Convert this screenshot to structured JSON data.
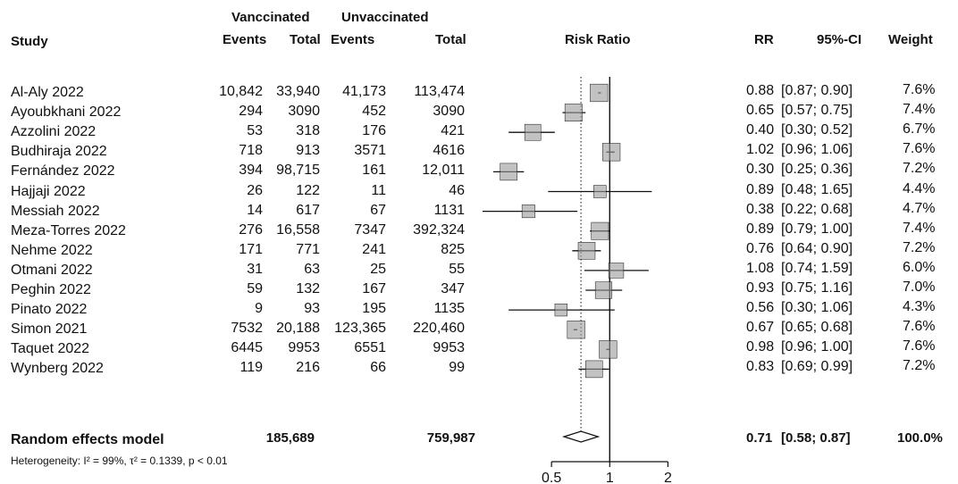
{
  "chart_data": {
    "type": "forest",
    "header": {
      "study": "Study",
      "vaccinated": "Vanccinated",
      "unvaccinated": "Unvaccinated",
      "events": "Events",
      "total": "Total",
      "risk_ratio": "Risk Ratio",
      "rr": "RR",
      "ci": "95%-CI",
      "weight": "Weight"
    },
    "studies": [
      {
        "study": "Al-Aly 2022",
        "vac_events": "10,842",
        "vac_total": "33,940",
        "unvac_events": "41,173",
        "unvac_total": "113,474",
        "rr": 0.88,
        "lo": 0.87,
        "hi": 0.9,
        "rr_text": "0.88",
        "ci_text": "[0.87; 0.90]",
        "weight": "7.6%"
      },
      {
        "study": "Ayoubkhani 2022",
        "vac_events": "294",
        "vac_total": "3090",
        "unvac_events": "452",
        "unvac_total": "3090",
        "rr": 0.65,
        "lo": 0.57,
        "hi": 0.75,
        "rr_text": "0.65",
        "ci_text": "[0.57; 0.75]",
        "weight": "7.4%"
      },
      {
        "study": "Azzolini 2022",
        "vac_events": "53",
        "vac_total": "318",
        "unvac_events": "176",
        "unvac_total": "421",
        "rr": 0.4,
        "lo": 0.3,
        "hi": 0.52,
        "rr_text": "0.40",
        "ci_text": "[0.30; 0.52]",
        "weight": "6.7%"
      },
      {
        "study": "Budhiraja 2022",
        "vac_events": "718",
        "vac_total": "913",
        "unvac_events": "3571",
        "unvac_total": "4616",
        "rr": 1.02,
        "lo": 0.96,
        "hi": 1.06,
        "rr_text": "1.02",
        "ci_text": "[0.96; 1.06]",
        "weight": "7.6%"
      },
      {
        "study": "Fernández 2022",
        "vac_events": "394",
        "vac_total": "98,715",
        "unvac_events": "161",
        "unvac_total": "12,011",
        "rr": 0.3,
        "lo": 0.25,
        "hi": 0.36,
        "rr_text": "0.30",
        "ci_text": "[0.25; 0.36]",
        "weight": "7.2%"
      },
      {
        "study": "Hajjaji 2022",
        "vac_events": "26",
        "vac_total": "122",
        "unvac_events": "11",
        "unvac_total": "46",
        "rr": 0.89,
        "lo": 0.48,
        "hi": 1.65,
        "rr_text": "0.89",
        "ci_text": "[0.48; 1.65]",
        "weight": "4.4%"
      },
      {
        "study": "Messiah 2022",
        "vac_events": "14",
        "vac_total": "617",
        "unvac_events": "67",
        "unvac_total": "1131",
        "rr": 0.38,
        "lo": 0.22,
        "hi": 0.68,
        "rr_text": "0.38",
        "ci_text": "[0.22; 0.68]",
        "weight": "4.7%"
      },
      {
        "study": "Meza-Torres 2022",
        "vac_events": "276",
        "vac_total": "16,558",
        "unvac_events": "7347",
        "unvac_total": "392,324",
        "rr": 0.89,
        "lo": 0.79,
        "hi": 1.0,
        "rr_text": "0.89",
        "ci_text": "[0.79; 1.00]",
        "weight": "7.4%"
      },
      {
        "study": "Nehme 2022",
        "vac_events": "171",
        "vac_total": "771",
        "unvac_events": "241",
        "unvac_total": "825",
        "rr": 0.76,
        "lo": 0.64,
        "hi": 0.9,
        "rr_text": "0.76",
        "ci_text": "[0.64; 0.90]",
        "weight": "7.2%"
      },
      {
        "study": "Otmani 2022",
        "vac_events": "31",
        "vac_total": "63",
        "unvac_events": "25",
        "unvac_total": "55",
        "rr": 1.08,
        "lo": 0.74,
        "hi": 1.59,
        "rr_text": "1.08",
        "ci_text": "[0.74; 1.59]",
        "weight": "6.0%"
      },
      {
        "study": "Peghin 2022",
        "vac_events": "59",
        "vac_total": "132",
        "unvac_events": "167",
        "unvac_total": "347",
        "rr": 0.93,
        "lo": 0.75,
        "hi": 1.16,
        "rr_text": "0.93",
        "ci_text": "[0.75; 1.16]",
        "weight": "7.0%"
      },
      {
        "study": "Pinato 2022",
        "vac_events": "9",
        "vac_total": "93",
        "unvac_events": "195",
        "unvac_total": "1135",
        "rr": 0.56,
        "lo": 0.3,
        "hi": 1.06,
        "rr_text": "0.56",
        "ci_text": "[0.30; 1.06]",
        "weight": "4.3%"
      },
      {
        "study": "Simon 2021",
        "vac_events": "7532",
        "vac_total": "20,188",
        "unvac_events": "123,365",
        "unvac_total": "220,460",
        "rr": 0.67,
        "lo": 0.65,
        "hi": 0.68,
        "rr_text": "0.67",
        "ci_text": "[0.65; 0.68]",
        "weight": "7.6%"
      },
      {
        "study": "Taquet 2022",
        "vac_events": "6445",
        "vac_total": "9953",
        "unvac_events": "6551",
        "unvac_total": "9953",
        "rr": 0.98,
        "lo": 0.96,
        "hi": 1.0,
        "rr_text": "0.98",
        "ci_text": "[0.96; 1.00]",
        "weight": "7.6%"
      },
      {
        "study": "Wynberg 2022",
        "vac_events": "119",
        "vac_total": "216",
        "unvac_events": "66",
        "unvac_total": "99",
        "rr": 0.83,
        "lo": 0.69,
        "hi": 0.99,
        "rr_text": "0.83",
        "ci_text": "[0.69; 0.99]",
        "weight": "7.2%"
      }
    ],
    "pooled": {
      "label": "Random effects model",
      "vac_total": "185,689",
      "unvac_total": "759,987",
      "rr": 0.71,
      "lo": 0.58,
      "hi": 0.87,
      "rr_text": "0.71",
      "ci_text": "[0.58; 0.87]",
      "weight": "100.0%"
    },
    "heterogeneity": "Heterogeneity: I² = 99%, τ² = 0.1339, p < 0.01",
    "x_axis": {
      "scale": "log",
      "ticks": [
        "0.5",
        "1",
        "2"
      ],
      "tick_values": [
        0.5,
        1,
        2
      ],
      "range": [
        0.22,
        2.1
      ]
    },
    "reference_line": 1,
    "pooled_line": 0.71,
    "colors": {
      "ink": "#111111",
      "marker": "#9a9a9a"
    }
  }
}
